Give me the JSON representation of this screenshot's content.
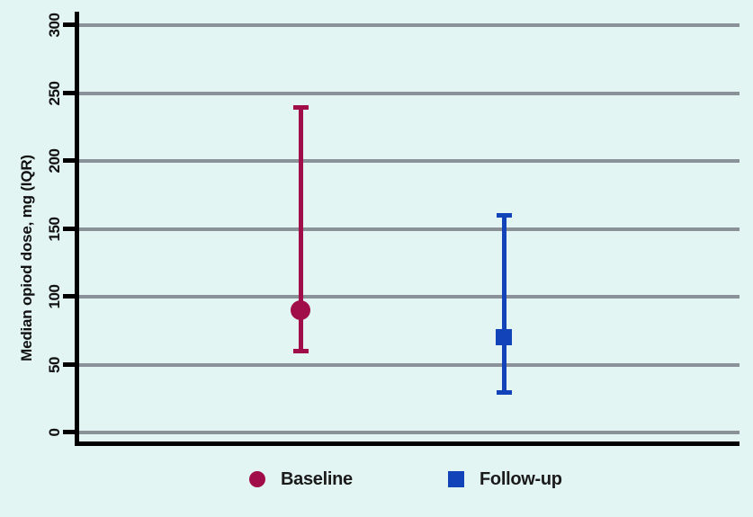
{
  "chart_data": {
    "type": "errorbar",
    "title": "",
    "ylabel": "Median opiod dose, mg (IQR)",
    "ylim": [
      0,
      300
    ],
    "yticks": [
      0,
      50,
      100,
      150,
      200,
      250,
      300
    ],
    "grid": "horizontal-only",
    "legend_position": "bottom-center",
    "background_color": "#E2F5F2",
    "gridline_color": "#8A9198",
    "axis_color": "#000000",
    "series": [
      {
        "name": "Baseline",
        "marker": "circle",
        "color": "#A10D49",
        "median": 90,
        "iqr_low": 60,
        "iqr_high": 240,
        "x_frac": 0.338
      },
      {
        "name": "Follow-up",
        "marker": "square",
        "color": "#1243B8",
        "median": 70,
        "iqr_low": 30,
        "iqr_high": 160,
        "x_frac": 0.645
      }
    ]
  }
}
